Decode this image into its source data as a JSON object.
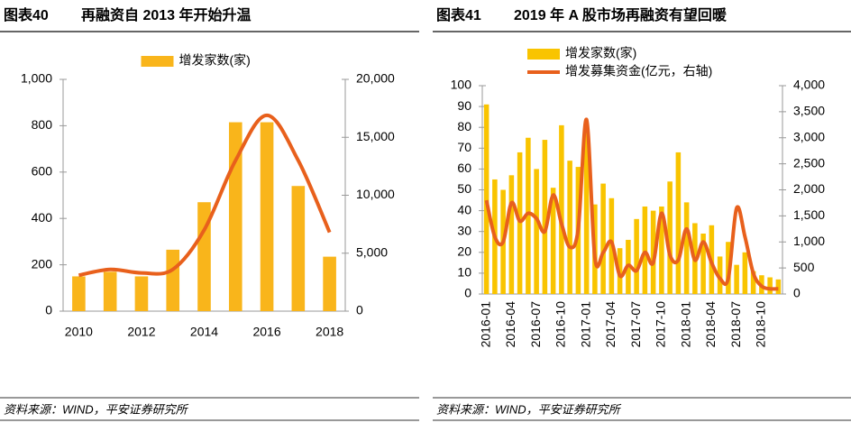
{
  "chart_data": [
    {
      "type": "bar",
      "figure_label": "图表40",
      "title": "再融资自 2013 年开始升温",
      "source": "资料来源：WIND，平安证券研究所",
      "categories": [
        "2010",
        null,
        "2012",
        null,
        "2014",
        null,
        "2016",
        null,
        "2018"
      ],
      "series": [
        {
          "name": "增发家数(家)",
          "color": "#f9b51b",
          "values": [
            150,
            170,
            150,
            265,
            470,
            815,
            815,
            540,
            235
          ]
        },
        {
          "type": "line",
          "axis": "y2",
          "color": "#e8601c",
          "values": [
            3100,
            3600,
            3300,
            3600,
            7000,
            13000,
            16900,
            13000,
            6800
          ]
        }
      ],
      "ylim": [
        0,
        1000
      ],
      "yticks": [
        0,
        200,
        400,
        600,
        800,
        {
          "value": 1000,
          "label": "1,000"
        }
      ],
      "y2lim": [
        0,
        20000
      ],
      "y2ticks": [
        0,
        {
          "value": 5000,
          "label": "5,000"
        },
        {
          "value": 10000,
          "label": "10,000"
        },
        {
          "value": 15000,
          "label": "15,000"
        },
        {
          "value": 20000,
          "label": "20,000"
        }
      ],
      "legend": "top",
      "smooth": true,
      "rotate_labels": false
    },
    {
      "type": "bar",
      "figure_label": "图表41",
      "title": "2019 年 A 股市场再融资有望回暖",
      "source": "资料来源：WIND，平安证券研究所",
      "categories": [
        "2016-01",
        null,
        null,
        "2016-04",
        null,
        null,
        "2016-07",
        null,
        null,
        "2016-10",
        null,
        null,
        "2017-01",
        null,
        null,
        "2017-04",
        null,
        null,
        "2017-07",
        null,
        null,
        "2017-10",
        null,
        null,
        "2018-01",
        null,
        null,
        "2018-04",
        null,
        null,
        "2018-07",
        null,
        null,
        "2018-10",
        null,
        null
      ],
      "series": [
        {
          "name": "增发家数(家)",
          "color": "#f9c400",
          "values": [
            91,
            55,
            50,
            57,
            68,
            75,
            60,
            74,
            51,
            81,
            64,
            61,
            81,
            43,
            53,
            46,
            22,
            26,
            36,
            42,
            40,
            42,
            54,
            68,
            44,
            34,
            29,
            33,
            18,
            25,
            14,
            20,
            11,
            9,
            8,
            7
          ]
        },
        {
          "name": "增发募集资金(亿元，右轴)",
          "type": "line",
          "axis": "y2",
          "color": "#e8601c",
          "values": [
            1800,
            1100,
            1000,
            1750,
            1400,
            1550,
            1450,
            1200,
            1900,
            1350,
            900,
            1250,
            3350,
            700,
            800,
            1000,
            350,
            550,
            450,
            800,
            600,
            1550,
            750,
            650,
            1250,
            650,
            1000,
            600,
            300,
            300,
            1650,
            1100,
            400,
            150,
            100,
            100
          ]
        }
      ],
      "ylim": [
        0,
        100
      ],
      "yticks": [
        0,
        10,
        20,
        30,
        40,
        50,
        60,
        70,
        80,
        90,
        100
      ],
      "y2lim": [
        0,
        4000
      ],
      "y2ticks": [
        0,
        500,
        {
          "value": 1000,
          "label": "1,000"
        },
        {
          "value": 1500,
          "label": "1,500"
        },
        {
          "value": 2000,
          "label": "2,000"
        },
        {
          "value": 2500,
          "label": "2,500"
        },
        {
          "value": 3000,
          "label": "3,000"
        },
        {
          "value": 3500,
          "label": "3,500"
        },
        {
          "value": 4000,
          "label": "4,000"
        }
      ],
      "legend": "top-left",
      "smooth": true,
      "rotate_labels": true
    }
  ]
}
